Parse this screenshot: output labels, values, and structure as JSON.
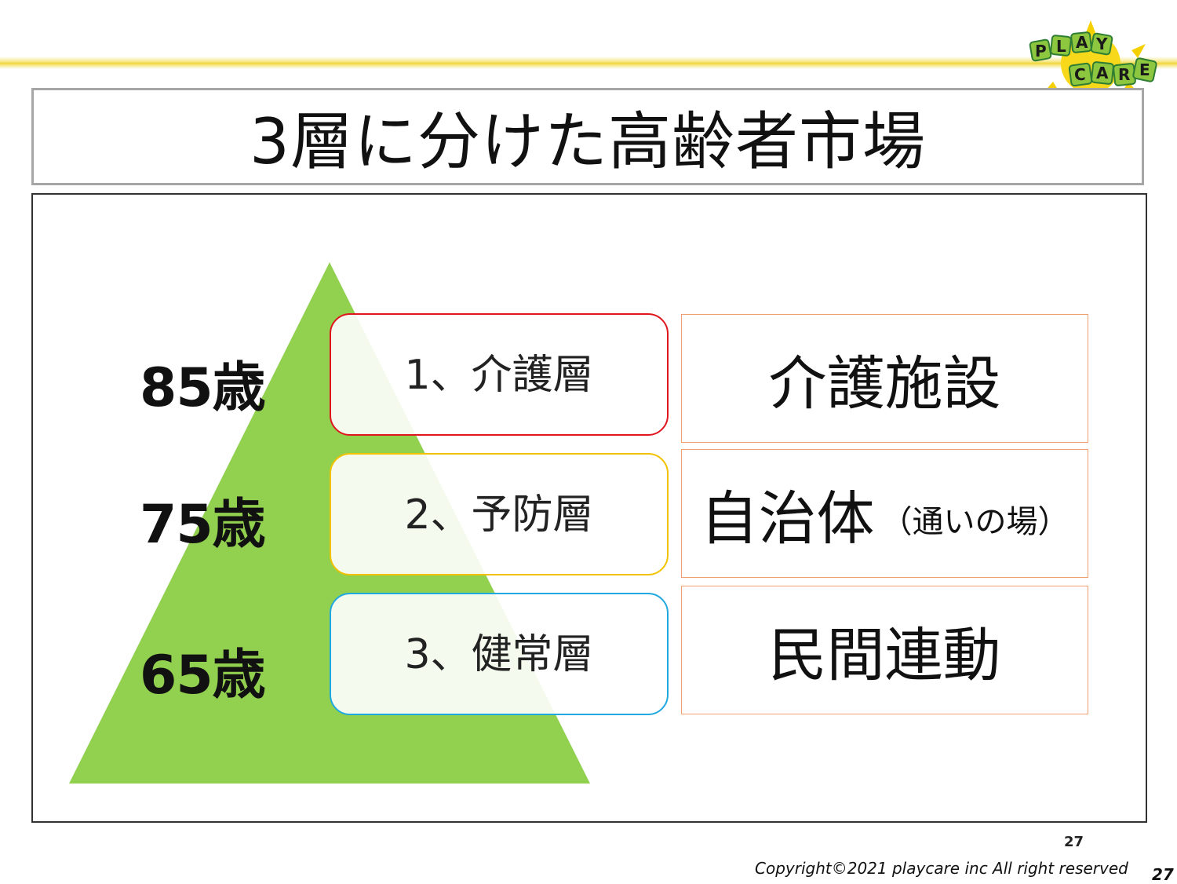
{
  "logo": {
    "line1": "PLAY",
    "line2": "CARE"
  },
  "title": "3層に分けた高齢者市場",
  "ages": [
    "85歳",
    "75歳",
    "65歳"
  ],
  "layers": [
    {
      "label": "1、介護層",
      "border_color": "#e0161f"
    },
    {
      "label": "2、予防層",
      "border_color": "#f2c200"
    },
    {
      "label": "3、健常層",
      "border_color": "#20a8e0"
    }
  ],
  "targets": [
    {
      "main": "介護施設",
      "sub": ""
    },
    {
      "main": "自治体",
      "sub": "（通いの場）"
    },
    {
      "main": "民間連動",
      "sub": ""
    }
  ],
  "pyramid_color": "#92d050",
  "page_number": "27",
  "copyright": "Copyright©2021  playcare inc All  right  reserved",
  "corner_page_number": "27"
}
